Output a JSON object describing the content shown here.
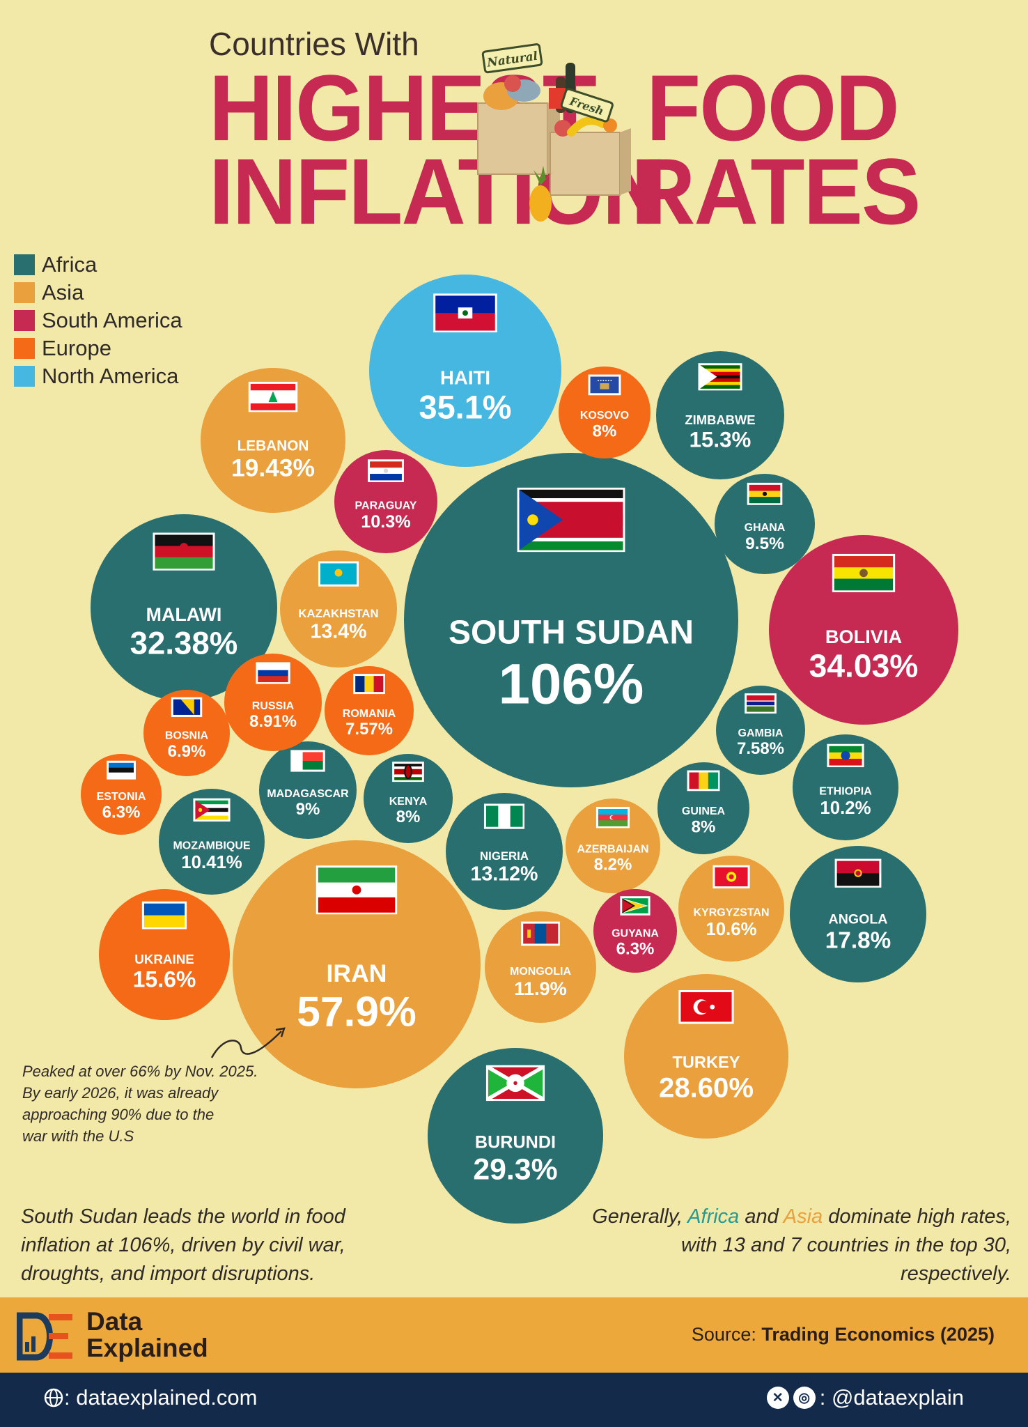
{
  "title": {
    "top": "Countries With",
    "word1": "HIGHEST",
    "word2": "INFLATION",
    "word3": "FOOD",
    "word4": "RATES",
    "tag_natural": "Natural",
    "tag_fresh": "Fresh"
  },
  "colors": {
    "Africa": "#2a6f6f",
    "Asia": "#e9a03d",
    "South America": "#c62952",
    "Europe": "#f46a16",
    "North America": "#46b7e1",
    "background": "#f2e9a8",
    "title": "#c62952"
  },
  "legend": [
    "Africa",
    "Asia",
    "South America",
    "Europe",
    "North America"
  ],
  "chart_data": {
    "type": "bubble",
    "title": "Countries With HIGHEST FOOD INFLATION RATES",
    "unit": "%",
    "points": [
      {
        "name": "SOUTH SUDAN",
        "label": "106%",
        "value": 106,
        "region": "Africa",
        "flag": "south-sudan"
      },
      {
        "name": "IRAN",
        "label": "57.9%",
        "value": 57.9,
        "region": "Asia",
        "flag": "iran"
      },
      {
        "name": "HAITI",
        "label": "35.1%",
        "value": 35.1,
        "region": "North America",
        "flag": "haiti"
      },
      {
        "name": "BOLIVIA",
        "label": "34.03%",
        "value": 34.03,
        "region": "South America",
        "flag": "bolivia"
      },
      {
        "name": "MALAWI",
        "label": "32.38%",
        "value": 32.38,
        "region": "Africa",
        "flag": "malawi"
      },
      {
        "name": "BURUNDI",
        "label": "29.3%",
        "value": 29.3,
        "region": "Africa",
        "flag": "burundi"
      },
      {
        "name": "TURKEY",
        "label": "28.60%",
        "value": 28.6,
        "region": "Asia",
        "flag": "turkey"
      },
      {
        "name": "LEBANON",
        "label": "19.43%",
        "value": 19.43,
        "region": "Asia",
        "flag": "lebanon"
      },
      {
        "name": "ANGOLA",
        "label": "17.8%",
        "value": 17.8,
        "region": "Africa",
        "flag": "angola"
      },
      {
        "name": "UKRAINE",
        "label": "15.6%",
        "value": 15.6,
        "region": "Europe",
        "flag": "ukraine"
      },
      {
        "name": "ZIMBABWE",
        "label": "15.3%",
        "value": 15.3,
        "region": "Africa",
        "flag": "zimbabwe"
      },
      {
        "name": "KAZAKHSTAN",
        "label": "13.4%",
        "value": 13.4,
        "region": "Asia",
        "flag": "kazakhstan"
      },
      {
        "name": "NIGERIA",
        "label": "13.12%",
        "value": 13.12,
        "region": "Africa",
        "flag": "nigeria"
      },
      {
        "name": "MONGOLIA",
        "label": "11.9%",
        "value": 11.9,
        "region": "Asia",
        "flag": "mongolia"
      },
      {
        "name": "KYRGYZSTAN",
        "label": "10.6%",
        "value": 10.6,
        "region": "Asia",
        "flag": "kyrgyzstan"
      },
      {
        "name": "MOZAMBIQUE",
        "label": "10.41%",
        "value": 10.41,
        "region": "Africa",
        "flag": "mozambique"
      },
      {
        "name": "PARAGUAY",
        "label": "10.3%",
        "value": 10.3,
        "region": "South America",
        "flag": "paraguay"
      },
      {
        "name": "ETHIOPIA",
        "label": "10.2%",
        "value": 10.2,
        "region": "Africa",
        "flag": "ethiopia"
      },
      {
        "name": "GHANA",
        "label": "9.5%",
        "value": 9.5,
        "region": "Africa",
        "flag": "ghana"
      },
      {
        "name": "MADAGASCAR",
        "label": "9%",
        "value": 9,
        "region": "Africa",
        "flag": "madagascar"
      },
      {
        "name": "RUSSIA",
        "label": "8.91%",
        "value": 8.91,
        "region": "Europe",
        "flag": "russia"
      },
      {
        "name": "AZERBAIJAN",
        "label": "8.2%",
        "value": 8.2,
        "region": "Asia",
        "flag": "azerbaijan"
      },
      {
        "name": "KOSOVO",
        "label": "8%",
        "value": 8,
        "region": "Europe",
        "flag": "kosovo"
      },
      {
        "name": "KENYA",
        "label": "8%",
        "value": 8,
        "region": "Africa",
        "flag": "kenya"
      },
      {
        "name": "GUINEA",
        "label": "8%",
        "value": 8,
        "region": "Africa",
        "flag": "guinea"
      },
      {
        "name": "GAMBIA",
        "label": "7.58%",
        "value": 7.58,
        "region": "Africa",
        "flag": "gambia"
      },
      {
        "name": "ROMANIA",
        "label": "7.57%",
        "value": 7.57,
        "region": "Europe",
        "flag": "romania"
      },
      {
        "name": "BOSNIA",
        "label": "6.9%",
        "value": 6.9,
        "region": "Europe",
        "flag": "bosnia"
      },
      {
        "name": "ESTONIA",
        "label": "6.3%",
        "value": 6.3,
        "region": "Europe",
        "flag": "estonia"
      },
      {
        "name": "GUYANA",
        "label": "6.3%",
        "value": 6.3,
        "region": "South America",
        "flag": "guyana"
      }
    ]
  },
  "annotation": {
    "lines": [
      "Peaked at over 66% by Nov. 2025.",
      "By early 2026, it was already",
      "approaching 90% due to the",
      "war with the U.S"
    ]
  },
  "footer": {
    "left": "South Sudan leads the world in food inflation at 106%, driven by civil war, droughts, and import disruptions.",
    "right_before": "Generally, ",
    "right_africa": "Africa",
    "right_and": " and ",
    "right_asia": "Asia",
    "right_after": " dominate high rates, with 13 and 7 countries in the top 30, respectively."
  },
  "brand": {
    "line1": "Data",
    "line2": "Explained",
    "source_label": "Source: ",
    "source_value": "Trading Economics (2025)",
    "website": ": dataexplained.com",
    "social": ": @dataexplain"
  }
}
